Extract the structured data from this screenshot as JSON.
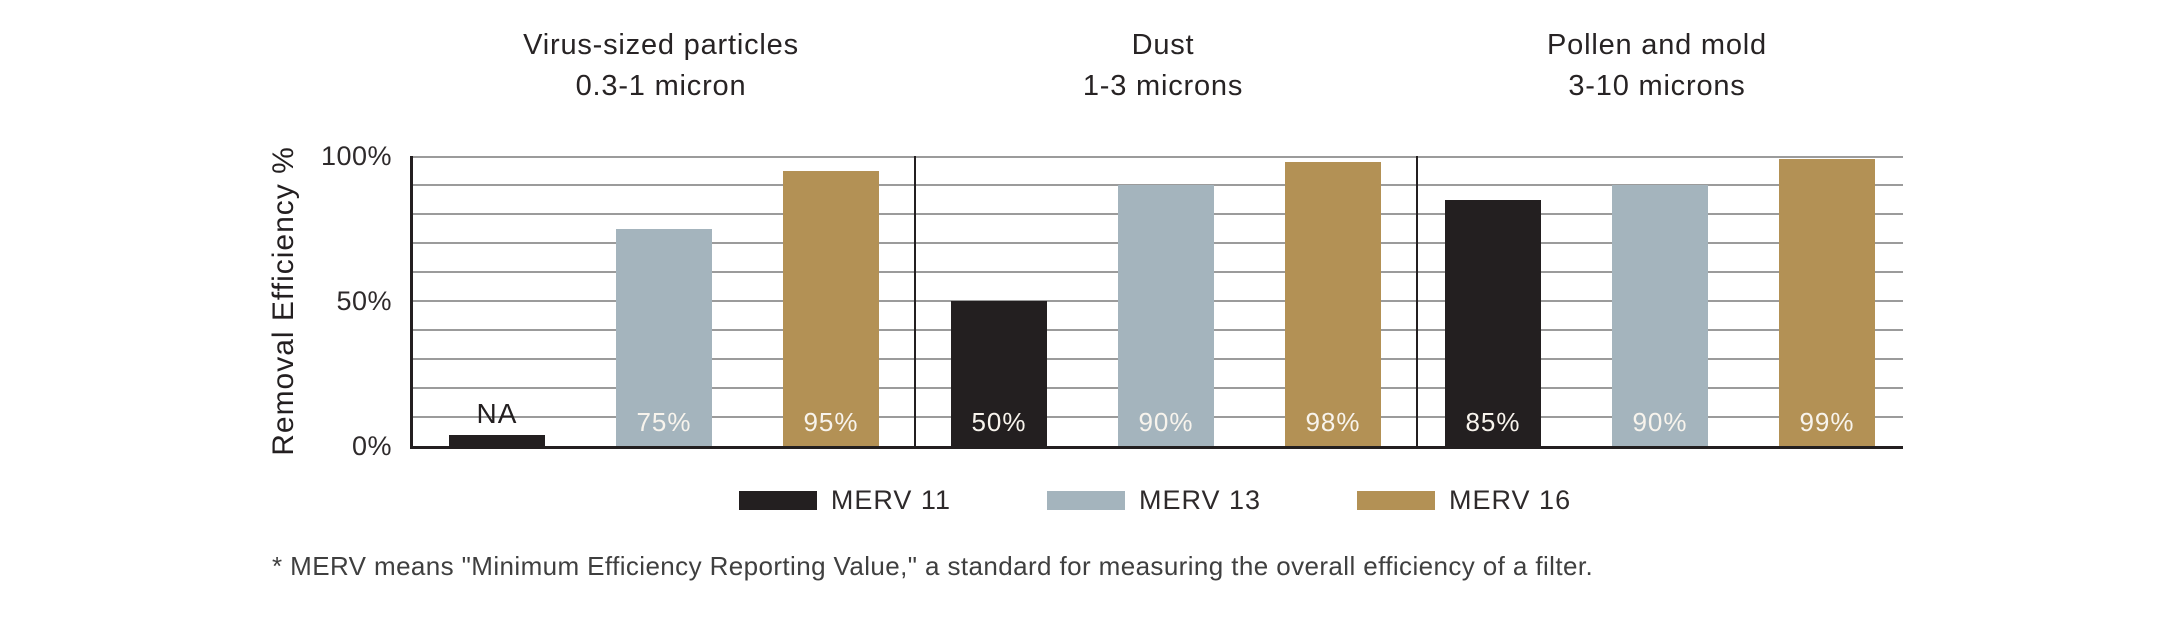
{
  "chart_data": {
    "type": "bar",
    "ylabel": "Removal Efficiency %",
    "ylim": [
      0,
      100
    ],
    "grid": true,
    "gridline_step": 10,
    "yticks": [
      {
        "value": 100,
        "label": "100%"
      },
      {
        "value": 50,
        "label": "50%"
      },
      {
        "value": 0,
        "label": "0%"
      }
    ],
    "series": [
      "MERV 11",
      "MERV 13",
      "MERV 16"
    ],
    "series_colors": {
      "MERV 11": "#231f20",
      "MERV 13": "#a4b4bd",
      "MERV 16": "#b39155"
    },
    "panels": [
      {
        "title": "Virus-sized particles",
        "subtitle": "0.3-1 micron",
        "bars": [
          {
            "series": "MERV 11",
            "value": null,
            "label": "NA"
          },
          {
            "series": "MERV 13",
            "value": 75,
            "label": "75%"
          },
          {
            "series": "MERV 16",
            "value": 95,
            "label": "95%"
          }
        ]
      },
      {
        "title": "Dust",
        "subtitle": "1-3 microns",
        "bars": [
          {
            "series": "MERV 11",
            "value": 50,
            "label": "50%"
          },
          {
            "series": "MERV 13",
            "value": 90,
            "label": "90%"
          },
          {
            "series": "MERV 16",
            "value": 98,
            "label": "98%"
          }
        ]
      },
      {
        "title": "Pollen and mold",
        "subtitle": "3-10 microns",
        "bars": [
          {
            "series": "MERV 11",
            "value": 85,
            "label": "85%"
          },
          {
            "series": "MERV 13",
            "value": 90,
            "label": "90%"
          },
          {
            "series": "MERV 16",
            "value": 99,
            "label": "99%"
          }
        ]
      }
    ],
    "legend_position": "bottom",
    "legend": [
      {
        "label": "MERV 11",
        "color": "#231f20"
      },
      {
        "label": "MERV 13",
        "color": "#a4b4bd"
      },
      {
        "label": "MERV 16",
        "color": "#b39155"
      }
    ]
  },
  "colors": {
    "gridline": "#9b9b9b",
    "axis": "#231f20",
    "bar_value_label": "#f8f4ed",
    "na_label": "#231f20"
  },
  "footnote": "* MERV means \"Minimum Efficiency Reporting Value,\" a standard for measuring the overall efficiency of a filter."
}
